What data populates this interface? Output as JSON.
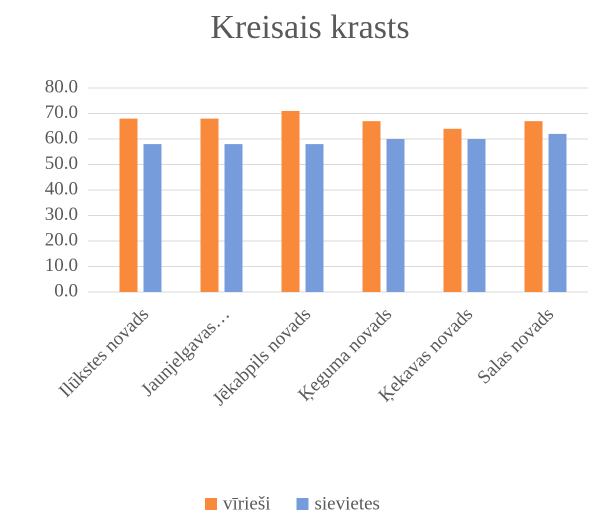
{
  "chart_data": {
    "type": "bar",
    "title": "Kreisais krasts",
    "categories": [
      "Ilūkstes novads",
      "Jaunjelgavas…",
      "Jēkabpils novads",
      "Ķeguma novads",
      "Ķekavas novads",
      "Salas novads"
    ],
    "series": [
      {
        "name": "vīrieši",
        "color": "#f98a3c",
        "values": [
          68,
          68,
          71,
          67,
          64,
          67
        ]
      },
      {
        "name": "sievietes",
        "color": "#769cdb",
        "values": [
          58,
          58,
          58,
          60,
          60,
          62
        ]
      }
    ],
    "ylim": [
      0,
      80
    ],
    "yticks": [
      {
        "value": 0,
        "label": "0.0"
      },
      {
        "value": 10,
        "label": "10.0"
      },
      {
        "value": 20,
        "label": "20.0"
      },
      {
        "value": 30,
        "label": "30.0"
      },
      {
        "value": 40,
        "label": "40.0"
      },
      {
        "value": 50,
        "label": "50.0"
      },
      {
        "value": 60,
        "label": "60.0"
      },
      {
        "value": 70,
        "label": "70.0"
      },
      {
        "value": 80,
        "label": "80.0"
      }
    ],
    "grid": true,
    "legend": "bottom"
  }
}
